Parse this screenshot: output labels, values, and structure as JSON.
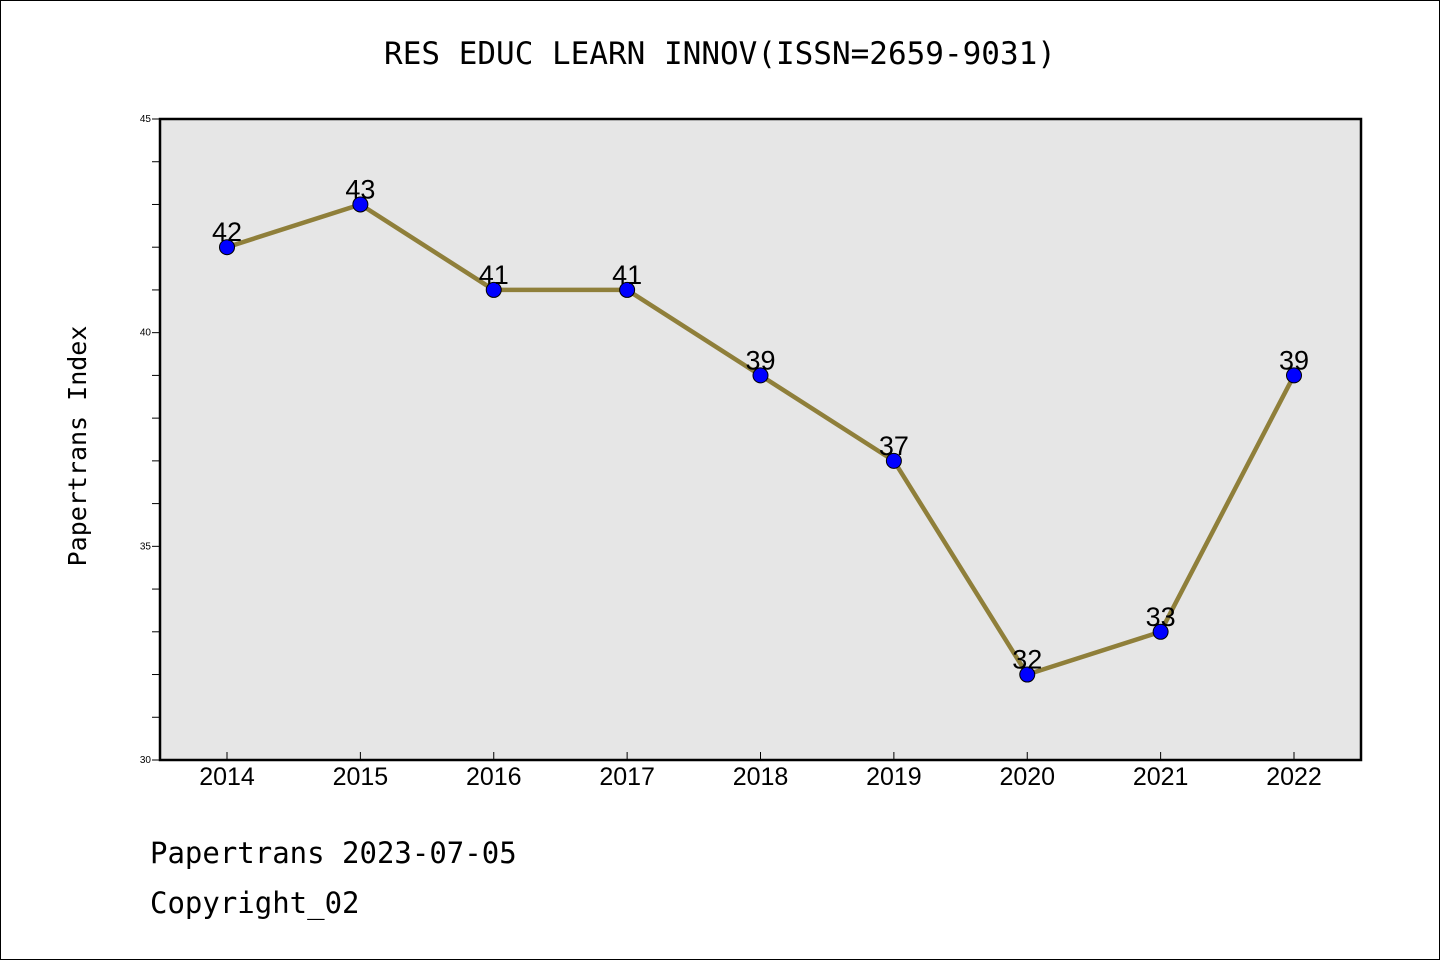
{
  "chart_data": {
    "type": "line",
    "title": "RES EDUC LEARN INNOV(ISSN=2659-9031)",
    "ylabel": "Papertrans Index",
    "xlabel": "",
    "categories": [
      "2014",
      "2015",
      "2016",
      "2017",
      "2018",
      "2019",
      "2020",
      "2021",
      "2022"
    ],
    "series": [
      {
        "values": [
          42,
          43,
          41,
          41,
          39,
          37,
          32,
          33,
          39
        ]
      }
    ],
    "data_labels": [
      "42",
      "43",
      "41",
      "41",
      "39",
      "37",
      "32",
      "33",
      "39"
    ],
    "ylim": [
      30,
      45
    ],
    "y_ticks": [
      "30",
      "35",
      "40",
      "45"
    ],
    "grid": false,
    "colors": {
      "line": "#8f7f3a",
      "marker": "#0000ff",
      "plot_background": "#e6e6e6"
    }
  },
  "footer": {
    "date_text": "Papertrans 2023-07-05",
    "copyright_text": "Copyright_02"
  }
}
